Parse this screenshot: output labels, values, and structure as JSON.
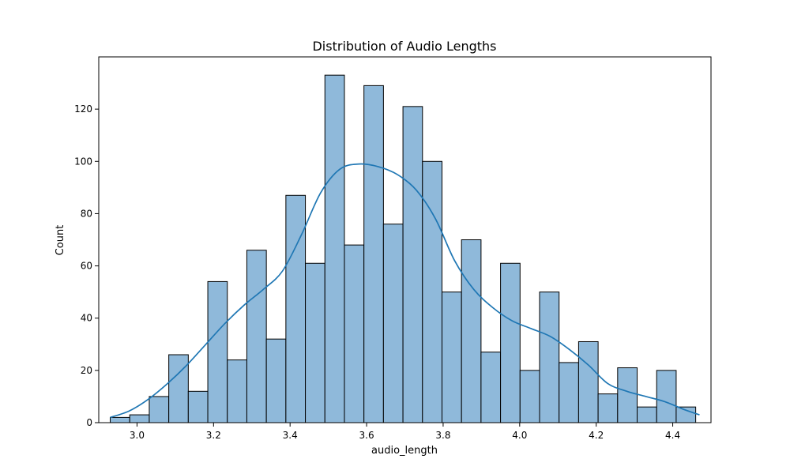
{
  "chart_data": {
    "type": "bar",
    "title": "Distribution of Audio Lengths",
    "xlabel": "audio_length",
    "ylabel": "Count",
    "xlim": [
      2.9,
      4.5
    ],
    "ylim": [
      0,
      140
    ],
    "xticks": [
      3.0,
      3.2,
      3.4,
      3.6,
      3.8,
      4.0,
      4.2,
      4.4
    ],
    "xtick_labels": [
      "3.0",
      "3.2",
      "3.4",
      "3.6",
      "3.8",
      "4.0",
      "4.2",
      "4.4"
    ],
    "yticks": [
      0,
      20,
      40,
      60,
      80,
      100,
      120
    ],
    "ytick_labels": [
      "0",
      "20",
      "40",
      "60",
      "80",
      "100",
      "120"
    ],
    "bin_start": 2.93,
    "bin_width": 0.051,
    "counts": [
      2,
      3,
      10,
      26,
      12,
      54,
      24,
      66,
      32,
      87,
      61,
      133,
      68,
      129,
      76,
      121,
      100,
      50,
      70,
      27,
      61,
      20,
      50,
      23,
      31,
      11,
      21,
      6,
      20,
      6
    ],
    "kde": {
      "x": [
        2.93,
        2.98,
        3.03,
        3.08,
        3.13,
        3.18,
        3.23,
        3.28,
        3.33,
        3.38,
        3.43,
        3.48,
        3.53,
        3.58,
        3.63,
        3.68,
        3.73,
        3.78,
        3.83,
        3.88,
        3.93,
        3.98,
        4.03,
        4.08,
        4.13,
        4.18,
        4.23,
        4.28,
        4.33,
        4.38,
        4.43,
        4.47
      ],
      "y": [
        2,
        4.5,
        9,
        15,
        22,
        30,
        38,
        45,
        51,
        58,
        72,
        88,
        97,
        99,
        98,
        95,
        89,
        78,
        62,
        51,
        44,
        39,
        36,
        33,
        28,
        22,
        15,
        12,
        10,
        8,
        5,
        3
      ]
    },
    "bar_color": "#8fb9da",
    "bar_edge_color": "#000000",
    "line_color": "#1f77b4",
    "grid": false
  }
}
